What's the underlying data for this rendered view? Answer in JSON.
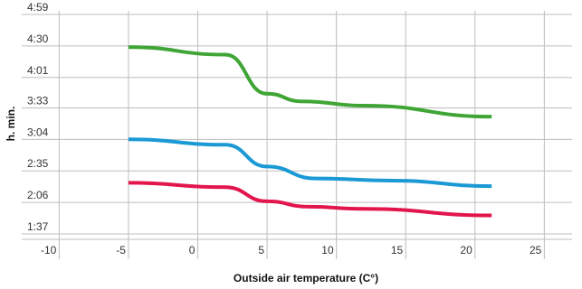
{
  "chart_data": {
    "type": "line",
    "title": "",
    "xlabel": "Outside air temperature (C°)",
    "ylabel": "h. min.",
    "x_ticks": [
      -10,
      -5,
      0,
      5,
      10,
      15,
      20,
      25
    ],
    "x_tick_labels": [
      "-10",
      "-5",
      "0",
      "5",
      "10",
      "15",
      "20",
      "25"
    ],
    "xlim": [
      -12.7,
      27.0
    ],
    "y_ticks": [
      "1:37",
      "2:06",
      "2:35",
      "3:04",
      "3:33",
      "4:01",
      "4:30",
      "4:59"
    ],
    "y_tick_minutes": [
      97,
      126,
      155,
      184,
      213,
      241,
      270,
      299
    ],
    "y_units": "minutes",
    "ylim": [
      92,
      299
    ],
    "grid": {
      "horizontal": true,
      "vertical": true
    },
    "legend": "none",
    "series": [
      {
        "color": "#3fa535",
        "x": [
          -5,
          2,
          5,
          7.5,
          12,
          21.2
        ],
        "y": [
          269,
          262,
          226,
          219,
          215,
          205
        ]
      },
      {
        "color": "#1a99d5",
        "x": [
          -5,
          2,
          5,
          8.5,
          14,
          21.2
        ],
        "y": [
          184,
          179,
          159,
          148,
          146,
          141
        ]
      },
      {
        "color": "#e2154d",
        "x": [
          -5,
          2,
          5,
          8,
          12,
          21.2
        ],
        "y": [
          144,
          140,
          127,
          122,
          120,
          114
        ]
      }
    ]
  }
}
